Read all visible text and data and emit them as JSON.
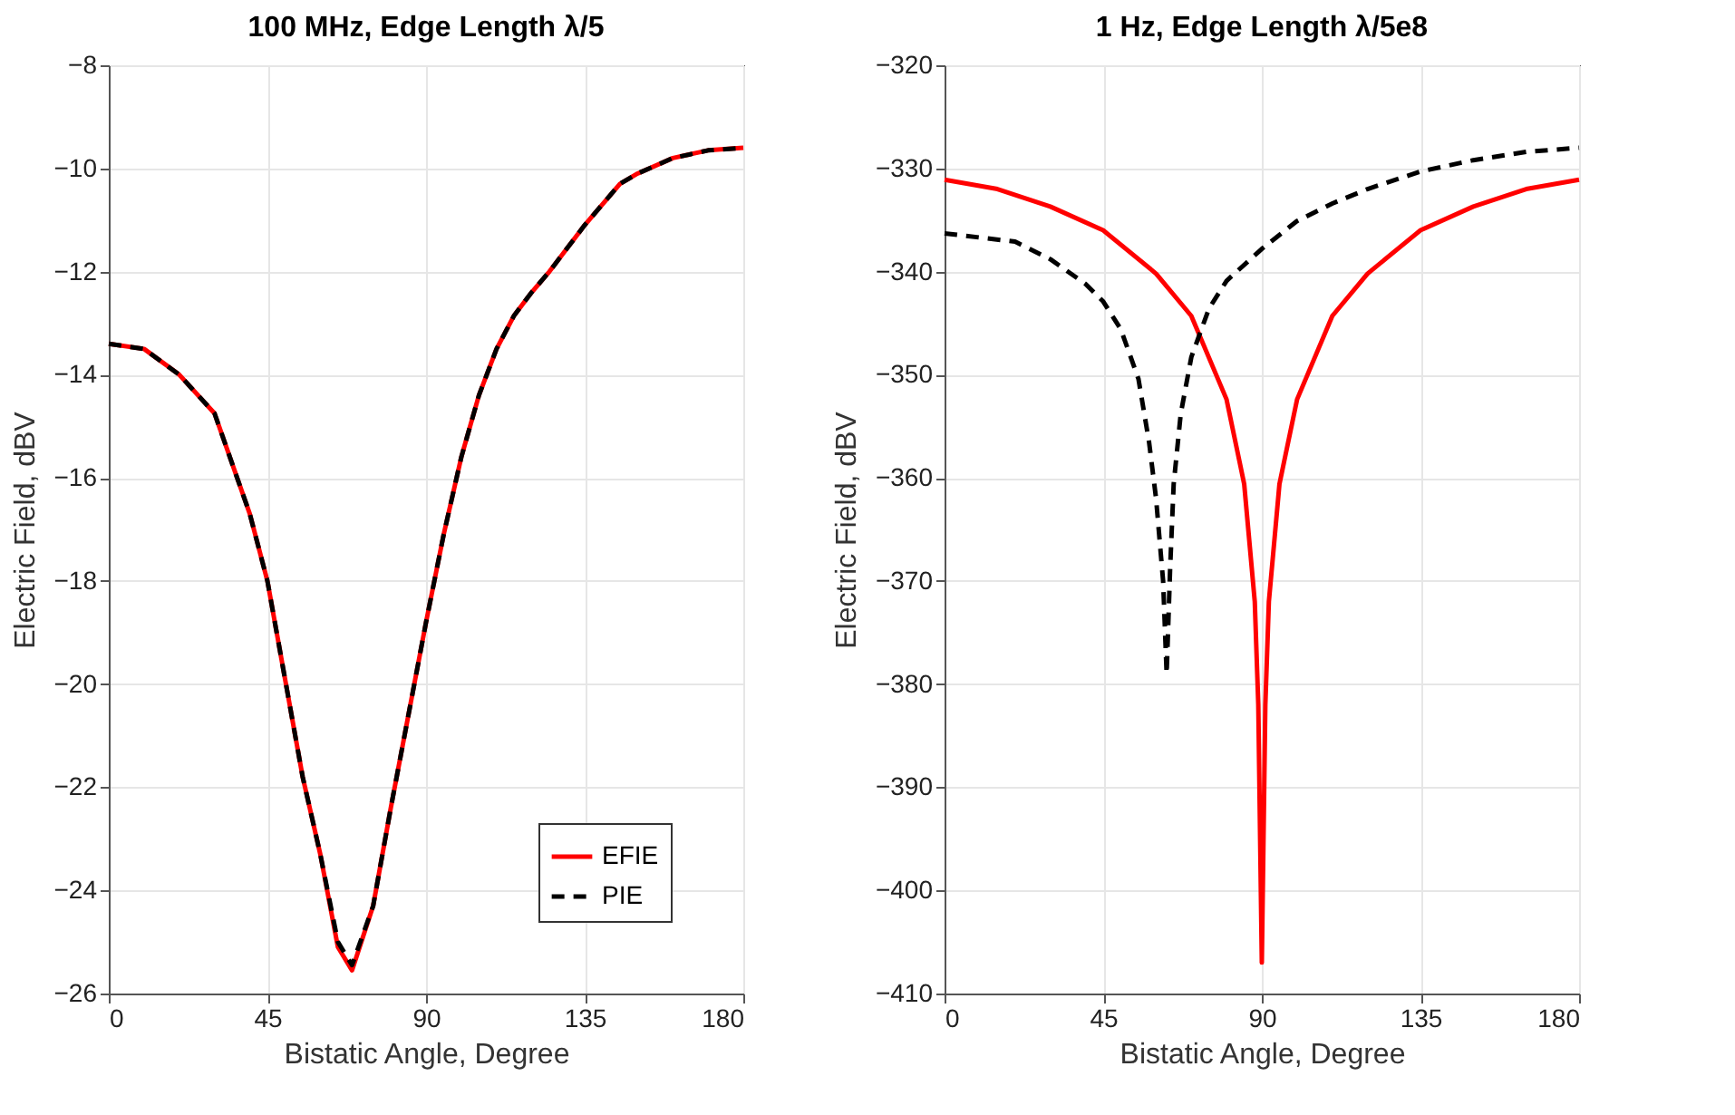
{
  "chart_data": [
    {
      "type": "line",
      "title": "100 MHz, Edge Length λ/5",
      "xlabel": "Bistatic Angle, Degree",
      "ylabel": "Electric Field, dBV",
      "xlim": [
        0,
        180
      ],
      "xticks": [
        0,
        45,
        90,
        135,
        180
      ],
      "ylim": [
        -26,
        -8
      ],
      "yticks": [
        -26,
        -24,
        -22,
        -20,
        -18,
        -16,
        -14,
        -12,
        -10,
        -8
      ],
      "grid": true,
      "legend": "bottom right",
      "series": [
        {
          "name": "EFIE",
          "color": "#ff0000",
          "line_style": "solid",
          "x": [
            0,
            10,
            20,
            30,
            40,
            45,
            50,
            55,
            60,
            65,
            69,
            75,
            80,
            85,
            90,
            95,
            100,
            105,
            110,
            115,
            120,
            125,
            135,
            145,
            150,
            160,
            170,
            180
          ],
          "values": [
            -13.4,
            -13.5,
            -14.0,
            -14.75,
            -16.7,
            -18.0,
            -19.9,
            -21.8,
            -23.3,
            -25.1,
            -25.55,
            -24.3,
            -22.4,
            -20.6,
            -18.8,
            -17.1,
            -15.6,
            -14.4,
            -13.5,
            -12.85,
            -12.4,
            -12.0,
            -11.1,
            -10.3,
            -10.1,
            -9.8,
            -9.65,
            -9.6
          ]
        },
        {
          "name": "PIE",
          "color": "#000000",
          "line_style": "dashed",
          "x": [
            0,
            10,
            20,
            30,
            40,
            45,
            50,
            55,
            60,
            65,
            69,
            75,
            80,
            85,
            90,
            95,
            100,
            105,
            110,
            115,
            120,
            125,
            135,
            145,
            150,
            160,
            170,
            180
          ],
          "values": [
            -13.4,
            -13.5,
            -14.0,
            -14.75,
            -16.7,
            -18.0,
            -19.9,
            -21.8,
            -23.3,
            -25.0,
            -25.45,
            -24.3,
            -22.4,
            -20.6,
            -18.8,
            -17.1,
            -15.6,
            -14.4,
            -13.5,
            -12.85,
            -12.4,
            -12.0,
            -11.1,
            -10.3,
            -10.1,
            -9.8,
            -9.65,
            -9.6
          ]
        }
      ]
    },
    {
      "type": "line",
      "title": "1 Hz, Edge Length λ/5e8",
      "xlabel": "Bistatic Angle, Degree",
      "ylabel": "Electric Field, dBV",
      "xlim": [
        0,
        180
      ],
      "xticks": [
        0,
        45,
        90,
        135,
        180
      ],
      "ylim": [
        -410,
        -320
      ],
      "yticks": [
        -410,
        -400,
        -390,
        -380,
        -370,
        -360,
        -350,
        -340,
        -330,
        -320
      ],
      "grid": true,
      "series": [
        {
          "color": "#ff0000",
          "line_style": "solid",
          "x": [
            0,
            15,
            30,
            45,
            60,
            70,
            80,
            85,
            88,
            89,
            90,
            91,
            92,
            95,
            100,
            110,
            120,
            135,
            150,
            165,
            180
          ],
          "values": [
            -331.1,
            -332.0,
            -333.7,
            -336.0,
            -340.2,
            -344.3,
            -352.4,
            -360.6,
            -372,
            -382,
            -407,
            -382,
            -372,
            -360.6,
            -352.4,
            -344.3,
            -340.2,
            -336.0,
            -333.7,
            -332.0,
            -331.1
          ]
        },
        {
          "color": "#000000",
          "line_style": "dashed",
          "x": [
            0,
            20,
            30,
            40,
            45,
            50,
            55,
            58,
            60,
            62,
            63,
            64,
            65,
            67,
            70,
            75,
            80,
            90,
            100,
            110,
            120,
            135,
            150,
            165,
            180
          ],
          "values": [
            -336.3,
            -337.1,
            -338.8,
            -341.2,
            -342.9,
            -345.6,
            -350.4,
            -356.5,
            -362,
            -370,
            -379,
            -368.7,
            -360.6,
            -353.8,
            -348.3,
            -343.6,
            -340.9,
            -337.8,
            -335.1,
            -333.4,
            -332,
            -330.3,
            -329.2,
            -328.4,
            -328
          ]
        }
      ]
    }
  ]
}
